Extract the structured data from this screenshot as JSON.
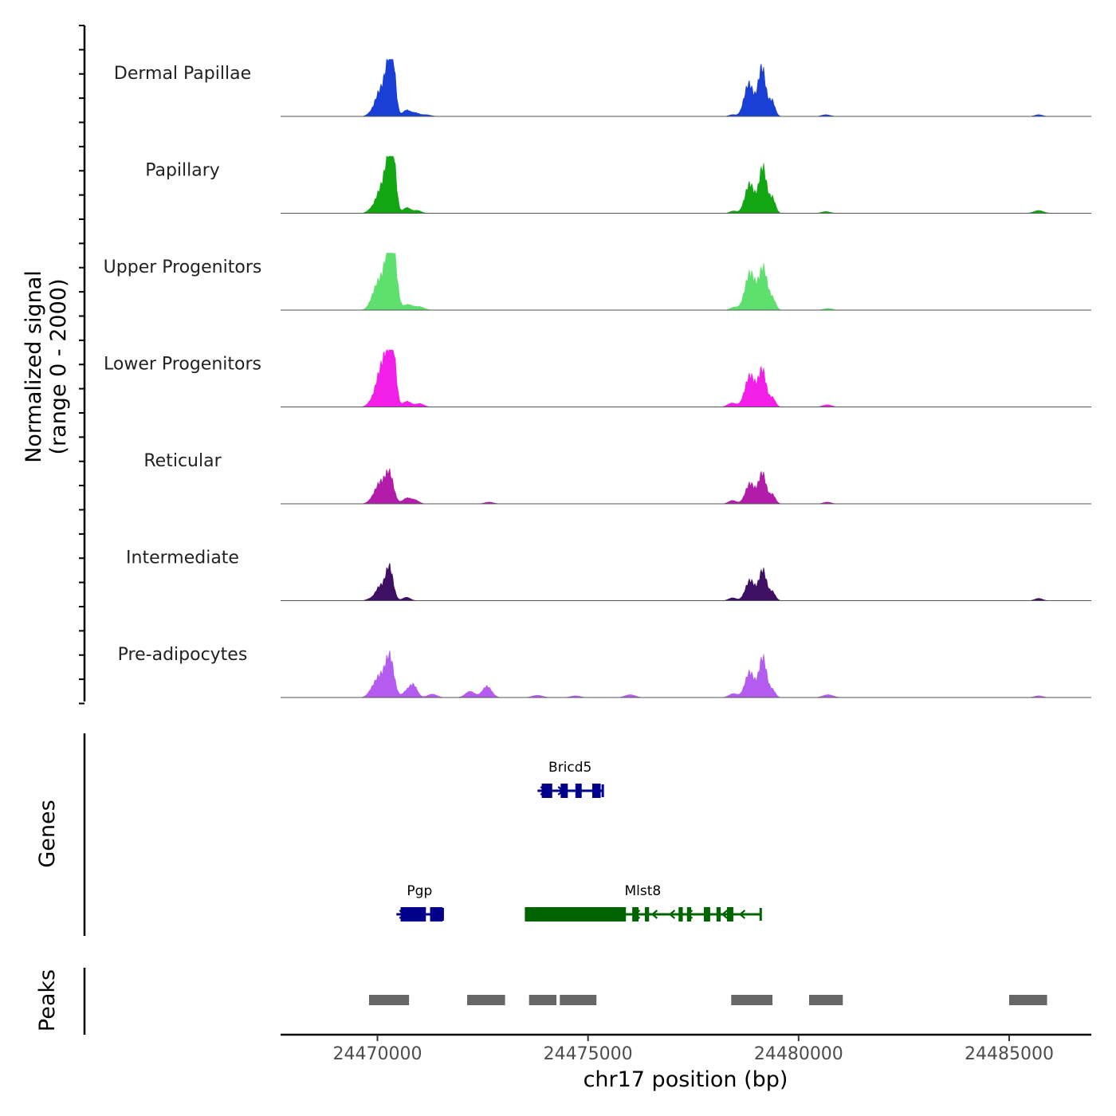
{
  "chart_data": {
    "type": "area",
    "title": "",
    "xlabel": "chr17 position (bp)",
    "ylabel_line1": "Normalized signal",
    "ylabel_line2": "(range 0 - 2000)",
    "xlim": [
      24467700,
      24486950
    ],
    "x_ticks": [
      24470000,
      24475000,
      24480000,
      24485000
    ],
    "x_tick_labels": [
      "24470000",
      "24475000",
      "24480000",
      "24485000"
    ],
    "y_range": [
      0,
      2000
    ],
    "tracks": [
      {
        "name": "Dermal Papillae",
        "color": "#1a3fd6",
        "peaks": [
          {
            "center": 24469830,
            "width": 80,
            "height": 0.04
          },
          {
            "center": 24470050,
            "width": 110,
            "height": 0.42
          },
          {
            "center": 24470260,
            "width": 90,
            "height": 0.85
          },
          {
            "center": 24470370,
            "width": 70,
            "height": 0.72
          },
          {
            "center": 24470690,
            "width": 90,
            "height": 0.11
          },
          {
            "center": 24470900,
            "width": 90,
            "height": 0.06
          },
          {
            "center": 24471150,
            "width": 110,
            "height": 0.03
          },
          {
            "center": 24478430,
            "width": 80,
            "height": 0.03
          },
          {
            "center": 24478820,
            "width": 110,
            "height": 0.58
          },
          {
            "center": 24479130,
            "width": 90,
            "height": 0.87
          },
          {
            "center": 24479370,
            "width": 70,
            "height": 0.27
          },
          {
            "center": 24480650,
            "width": 100,
            "height": 0.03
          },
          {
            "center": 24485700,
            "width": 90,
            "height": 0.03
          }
        ]
      },
      {
        "name": "Papillary",
        "color": "#12a612",
        "peaks": [
          {
            "center": 24469830,
            "width": 80,
            "height": 0.05
          },
          {
            "center": 24470060,
            "width": 110,
            "height": 0.38
          },
          {
            "center": 24470260,
            "width": 90,
            "height": 0.89
          },
          {
            "center": 24470380,
            "width": 70,
            "height": 0.78
          },
          {
            "center": 24470700,
            "width": 90,
            "height": 0.1
          },
          {
            "center": 24470950,
            "width": 90,
            "height": 0.05
          },
          {
            "center": 24478450,
            "width": 80,
            "height": 0.04
          },
          {
            "center": 24478840,
            "width": 110,
            "height": 0.52
          },
          {
            "center": 24479150,
            "width": 90,
            "height": 0.82
          },
          {
            "center": 24479380,
            "width": 70,
            "height": 0.26
          },
          {
            "center": 24480650,
            "width": 100,
            "height": 0.03
          },
          {
            "center": 24485700,
            "width": 110,
            "height": 0.05
          }
        ]
      },
      {
        "name": "Upper Progenitors",
        "color": "#5ee06e",
        "peaks": [
          {
            "center": 24469850,
            "width": 90,
            "height": 0.06
          },
          {
            "center": 24470030,
            "width": 120,
            "height": 0.48
          },
          {
            "center": 24470270,
            "width": 100,
            "height": 1.0
          },
          {
            "center": 24470400,
            "width": 80,
            "height": 0.66
          },
          {
            "center": 24470720,
            "width": 110,
            "height": 0.1
          },
          {
            "center": 24471000,
            "width": 110,
            "height": 0.06
          },
          {
            "center": 24478470,
            "width": 90,
            "height": 0.05
          },
          {
            "center": 24478850,
            "width": 120,
            "height": 0.66
          },
          {
            "center": 24479160,
            "width": 100,
            "height": 0.74
          },
          {
            "center": 24479390,
            "width": 70,
            "height": 0.18
          },
          {
            "center": 24480700,
            "width": 100,
            "height": 0.03
          }
        ]
      },
      {
        "name": "Lower Progenitors",
        "color": "#f31fe8",
        "peaks": [
          {
            "center": 24469820,
            "width": 80,
            "height": 0.05
          },
          {
            "center": 24470070,
            "width": 120,
            "height": 0.59
          },
          {
            "center": 24470260,
            "width": 100,
            "height": 0.79
          },
          {
            "center": 24470380,
            "width": 70,
            "height": 0.71
          },
          {
            "center": 24470700,
            "width": 100,
            "height": 0.1
          },
          {
            "center": 24471000,
            "width": 100,
            "height": 0.06
          },
          {
            "center": 24478420,
            "width": 100,
            "height": 0.07
          },
          {
            "center": 24478850,
            "width": 120,
            "height": 0.56
          },
          {
            "center": 24479140,
            "width": 90,
            "height": 0.65
          },
          {
            "center": 24479380,
            "width": 70,
            "height": 0.16
          },
          {
            "center": 24480680,
            "width": 100,
            "height": 0.04
          }
        ]
      },
      {
        "name": "Reticular",
        "color": "#b21ca8",
        "peaks": [
          {
            "center": 24469860,
            "width": 90,
            "height": 0.05
          },
          {
            "center": 24470050,
            "width": 110,
            "height": 0.34
          },
          {
            "center": 24470280,
            "width": 100,
            "height": 0.54
          },
          {
            "center": 24470700,
            "width": 100,
            "height": 0.1
          },
          {
            "center": 24470900,
            "width": 90,
            "height": 0.06
          },
          {
            "center": 24472650,
            "width": 100,
            "height": 0.03
          },
          {
            "center": 24478430,
            "width": 90,
            "height": 0.06
          },
          {
            "center": 24478850,
            "width": 110,
            "height": 0.36
          },
          {
            "center": 24479140,
            "width": 90,
            "height": 0.54
          },
          {
            "center": 24479380,
            "width": 70,
            "height": 0.16
          },
          {
            "center": 24480680,
            "width": 90,
            "height": 0.03
          }
        ]
      },
      {
        "name": "Intermediate",
        "color": "#3e0f63",
        "peaks": [
          {
            "center": 24469820,
            "width": 80,
            "height": 0.03
          },
          {
            "center": 24470050,
            "width": 100,
            "height": 0.24
          },
          {
            "center": 24470280,
            "width": 90,
            "height": 0.6
          },
          {
            "center": 24470690,
            "width": 90,
            "height": 0.06
          },
          {
            "center": 24478430,
            "width": 90,
            "height": 0.05
          },
          {
            "center": 24478850,
            "width": 110,
            "height": 0.36
          },
          {
            "center": 24479150,
            "width": 90,
            "height": 0.54
          },
          {
            "center": 24479380,
            "width": 70,
            "height": 0.15
          },
          {
            "center": 24485700,
            "width": 90,
            "height": 0.04
          }
        ]
      },
      {
        "name": "Pre-adipocytes",
        "color": "#b45bf0",
        "peaks": [
          {
            "center": 24469850,
            "width": 90,
            "height": 0.08
          },
          {
            "center": 24470050,
            "width": 120,
            "height": 0.36
          },
          {
            "center": 24470290,
            "width": 100,
            "height": 0.71
          },
          {
            "center": 24470700,
            "width": 100,
            "height": 0.11
          },
          {
            "center": 24470860,
            "width": 90,
            "height": 0.2
          },
          {
            "center": 24471300,
            "width": 110,
            "height": 0.06
          },
          {
            "center": 24472200,
            "width": 110,
            "height": 0.11
          },
          {
            "center": 24472600,
            "width": 110,
            "height": 0.2
          },
          {
            "center": 24473800,
            "width": 120,
            "height": 0.04
          },
          {
            "center": 24474700,
            "width": 110,
            "height": 0.03
          },
          {
            "center": 24476000,
            "width": 120,
            "height": 0.05
          },
          {
            "center": 24478450,
            "width": 100,
            "height": 0.07
          },
          {
            "center": 24478840,
            "width": 110,
            "height": 0.45
          },
          {
            "center": 24479150,
            "width": 90,
            "height": 0.71
          },
          {
            "center": 24479380,
            "width": 70,
            "height": 0.13
          },
          {
            "center": 24480700,
            "width": 120,
            "height": 0.05
          },
          {
            "center": 24485700,
            "width": 100,
            "height": 0.03
          }
        ]
      }
    ],
    "genes": [
      {
        "name": "Bricd5",
        "strand": "+",
        "start": 24473800,
        "end": 24475350,
        "color": "#00008b",
        "row": 1,
        "exons": [
          [
            24473900,
            24474150
          ],
          [
            24474350,
            24474520
          ],
          [
            24474700,
            24474850
          ],
          [
            24475100,
            24475300
          ]
        ]
      },
      {
        "name": "Pgp",
        "strand": "+",
        "start": 24470450,
        "end": 24471550,
        "color": "#00008b",
        "row": 2,
        "exons": [
          [
            24470550,
            24471150
          ],
          [
            24471250,
            24471550
          ]
        ]
      },
      {
        "name": "Mlst8",
        "strand": "-",
        "start": 24473500,
        "end": 24479100,
        "color": "#006400",
        "row": 2,
        "exons": [
          [
            24473500,
            24475900
          ],
          [
            24476050,
            24476200
          ],
          [
            24476350,
            24476450
          ],
          [
            24477150,
            24477250
          ],
          [
            24477350,
            24477450
          ],
          [
            24477750,
            24477900
          ],
          [
            24478050,
            24478150
          ],
          [
            24478300,
            24478450
          ]
        ]
      }
    ],
    "peak_regions": [
      [
        24469800,
        24470750
      ],
      [
        24472130,
        24473030
      ],
      [
        24473600,
        24474250
      ],
      [
        24474330,
        24475200
      ],
      [
        24478400,
        24479380
      ],
      [
        24480250,
        24481050
      ],
      [
        24485000,
        24485900
      ]
    ],
    "genes_label": "Genes",
    "peaks_label": "Peaks"
  }
}
